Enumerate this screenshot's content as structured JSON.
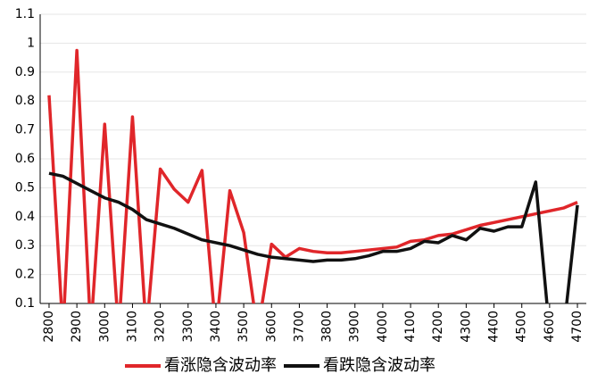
{
  "chart_data": {
    "type": "line",
    "x": [
      2800,
      2850,
      2900,
      2950,
      3000,
      3050,
      3100,
      3150,
      3200,
      3250,
      3300,
      3350,
      3400,
      3450,
      3500,
      3550,
      3600,
      3650,
      3700,
      3750,
      3800,
      3850,
      3900,
      3950,
      4000,
      4050,
      4100,
      4150,
      4200,
      4250,
      4300,
      4350,
      4400,
      4450,
      4500,
      4550,
      4600,
      4650,
      4700
    ],
    "series": [
      {
        "name": "看涨隐含波动率",
        "color": "#e0262a",
        "values": [
          0.82,
          0,
          0.975,
          0,
          0.72,
          0,
          0.745,
          0,
          0.565,
          0.495,
          0.45,
          0.56,
          0,
          0.49,
          0.345,
          0,
          0.305,
          0.26,
          0.29,
          0.28,
          0.275,
          0.275,
          0.28,
          0.285,
          0.29,
          0.295,
          0.315,
          0.32,
          0.335,
          0.34,
          0.355,
          0.37,
          0.38,
          0.39,
          0.4,
          0.41,
          0.42,
          0.43,
          0.45
        ]
      },
      {
        "name": "看跌隐含波动率",
        "color": "#111111",
        "values": [
          0.55,
          0.54,
          0.515,
          0.49,
          0.465,
          0.45,
          0.425,
          0.39,
          0.375,
          0.36,
          0.34,
          0.32,
          0.31,
          0.3,
          0.285,
          0.27,
          0.26,
          0.255,
          0.25,
          0.245,
          0.25,
          0.25,
          0.255,
          0.265,
          0.28,
          0.28,
          0.29,
          0.315,
          0.31,
          0.335,
          0.32,
          0.36,
          0.35,
          0.365,
          0.365,
          0.52,
          0,
          0,
          0.44
        ]
      }
    ],
    "xlim": [
      2768,
      4732
    ],
    "xticks": [
      2800,
      2900,
      3000,
      3100,
      3200,
      3300,
      3400,
      3500,
      3600,
      3700,
      3800,
      3900,
      4000,
      4100,
      4200,
      4300,
      4400,
      4500,
      4600,
      4700
    ],
    "ylim": [
      0.1,
      1.1
    ],
    "yticks": [
      0.1,
      0.2,
      0.3,
      0.4,
      0.5,
      0.6,
      0.7,
      0.8,
      0.9,
      1,
      1.1
    ],
    "grid": true,
    "legend": "bottom"
  }
}
